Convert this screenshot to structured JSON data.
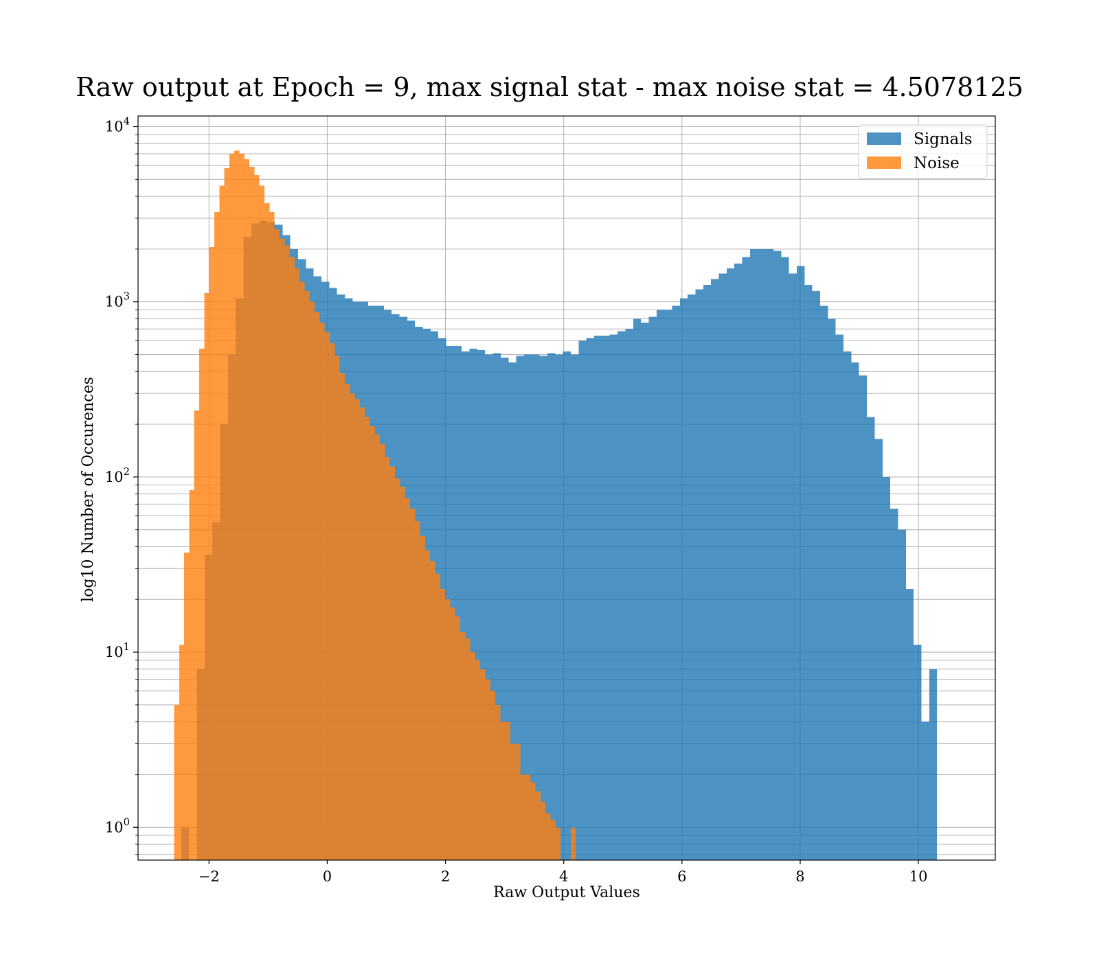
{
  "chart_data": {
    "type": "bar",
    "title": "Raw output at Epoch = 9, max signal stat - max noise stat = 4.5078125",
    "xlabel": "Raw Output Values",
    "ylabel": "log10 Number of Occurences",
    "xlim": [
      -3.2,
      11.3
    ],
    "ylim": [
      0.65,
      11500
    ],
    "yscale": "log",
    "grid": true,
    "legend_position": "top-right",
    "x_ticks": [
      {
        "value": -2,
        "label": "−2"
      },
      {
        "value": 0,
        "label": "0"
      },
      {
        "value": 2,
        "label": "2"
      },
      {
        "value": 4,
        "label": "4"
      },
      {
        "value": 6,
        "label": "6"
      },
      {
        "value": 8,
        "label": "8"
      },
      {
        "value": 10,
        "label": "10"
      }
    ],
    "y_ticks": [
      {
        "value": 1,
        "base": "10",
        "exp": "0"
      },
      {
        "value": 10,
        "base": "10",
        "exp": "1"
      },
      {
        "value": 100,
        "base": "10",
        "exp": "2"
      },
      {
        "value": 1000,
        "base": "10",
        "exp": "3"
      },
      {
        "value": 10000,
        "base": "10",
        "exp": "4"
      }
    ],
    "colors": {
      "Signals": "#1f77b4",
      "Noise": "#ff7f0e"
    },
    "series": [
      {
        "name": "Signals",
        "bin_start": -2.47,
        "bin_width": 0.1318,
        "values": [
          1,
          0,
          8,
          36,
          55,
          200,
          500,
          1050,
          2350,
          2800,
          2900,
          2850,
          2750,
          2400,
          2000,
          1750,
          1550,
          1400,
          1300,
          1200,
          1100,
          1050,
          1000,
          1000,
          950,
          950,
          900,
          850,
          820,
          780,
          720,
          700,
          680,
          620,
          560,
          560,
          520,
          540,
          530,
          500,
          510,
          480,
          450,
          490,
          500,
          500,
          490,
          510,
          500,
          520,
          500,
          600,
          620,
          640,
          640,
          650,
          680,
          700,
          800,
          760,
          820,
          900,
          900,
          950,
          1050,
          1100,
          1180,
          1250,
          1350,
          1450,
          1550,
          1650,
          1800,
          2000,
          2000,
          2000,
          1950,
          1800,
          1450,
          1600,
          1250,
          1150,
          950,
          800,
          650,
          520,
          450,
          380,
          220,
          165,
          100,
          66,
          50,
          23,
          11,
          4,
          8
        ]
      },
      {
        "name": "Noise",
        "bin_start": -2.59,
        "bin_width": 0.0849,
        "values": [
          5,
          11,
          37,
          84,
          240,
          540,
          1120,
          2050,
          3250,
          4600,
          5800,
          7000,
          7300,
          7000,
          6500,
          5900,
          5300,
          4600,
          3650,
          3250,
          2600,
          2300,
          2100,
          1800,
          1550,
          1300,
          1150,
          1000,
          870,
          760,
          670,
          580,
          490,
          390,
          340,
          300,
          280,
          250,
          220,
          195,
          175,
          155,
          130,
          115,
          98,
          88,
          76,
          66,
          56,
          46,
          38,
          33,
          28,
          23,
          20,
          18,
          16,
          13,
          12,
          10,
          9,
          8,
          7,
          6,
          5,
          4,
          4,
          3,
          3,
          2,
          2,
          1.8,
          1.6,
          1.4,
          1.2,
          1.1,
          1,
          0,
          0,
          1,
          0,
          0,
          0,
          0,
          0,
          0,
          0,
          0,
          0,
          0,
          0,
          0,
          0,
          0,
          0,
          0,
          0,
          0,
          0,
          0,
          0,
          0,
          0,
          0,
          0,
          0,
          0,
          0
        ]
      }
    ],
    "legend": [
      {
        "name": "Signals"
      },
      {
        "name": "Noise"
      }
    ]
  }
}
